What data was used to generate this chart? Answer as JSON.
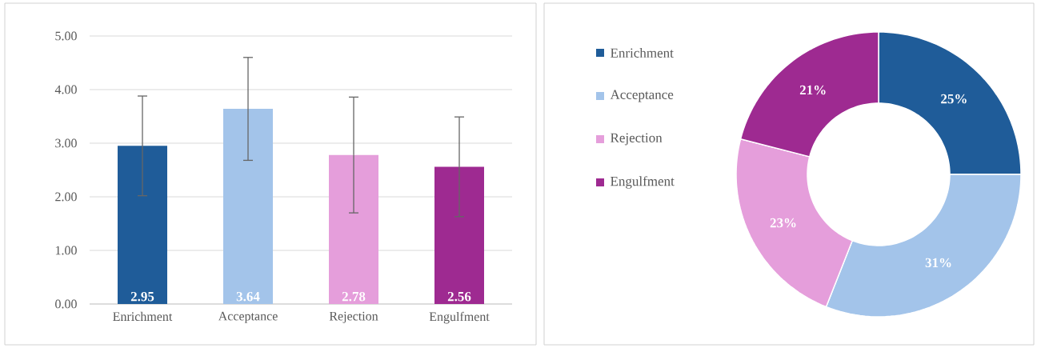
{
  "chart_data": [
    {
      "type": "bar",
      "categories": [
        "Enrichment",
        "Acceptance",
        "Rejection",
        "Engulfment"
      ],
      "values": [
        2.95,
        3.64,
        2.78,
        2.56
      ],
      "colors": [
        "#1f5c99",
        "#a3c4ea",
        "#e59edb",
        "#9e2a91"
      ],
      "errors": [
        0.93,
        0.96,
        1.08,
        0.93
      ],
      "ylim": [
        0,
        5
      ],
      "yticks": [
        {
          "value": 0,
          "label": "0.00"
        },
        {
          "value": 1,
          "label": "1.00"
        },
        {
          "value": 2,
          "label": "2.00"
        },
        {
          "value": 3,
          "label": "3.00"
        },
        {
          "value": 4,
          "label": "4.00"
        },
        {
          "value": 5,
          "label": "5.00"
        }
      ],
      "grid": "y",
      "data_labels": true
    },
    {
      "type": "donut",
      "categories": [
        "Enrichment",
        "Acceptance",
        "Rejection",
        "Engulfment"
      ],
      "values": [
        25,
        31,
        23,
        21
      ],
      "colors": [
        "#1f5c99",
        "#a3c4ea",
        "#e59edb",
        "#9e2a91"
      ],
      "value_labels": [
        "25%",
        "31%",
        "23%",
        "21%"
      ],
      "legend": "left"
    }
  ]
}
